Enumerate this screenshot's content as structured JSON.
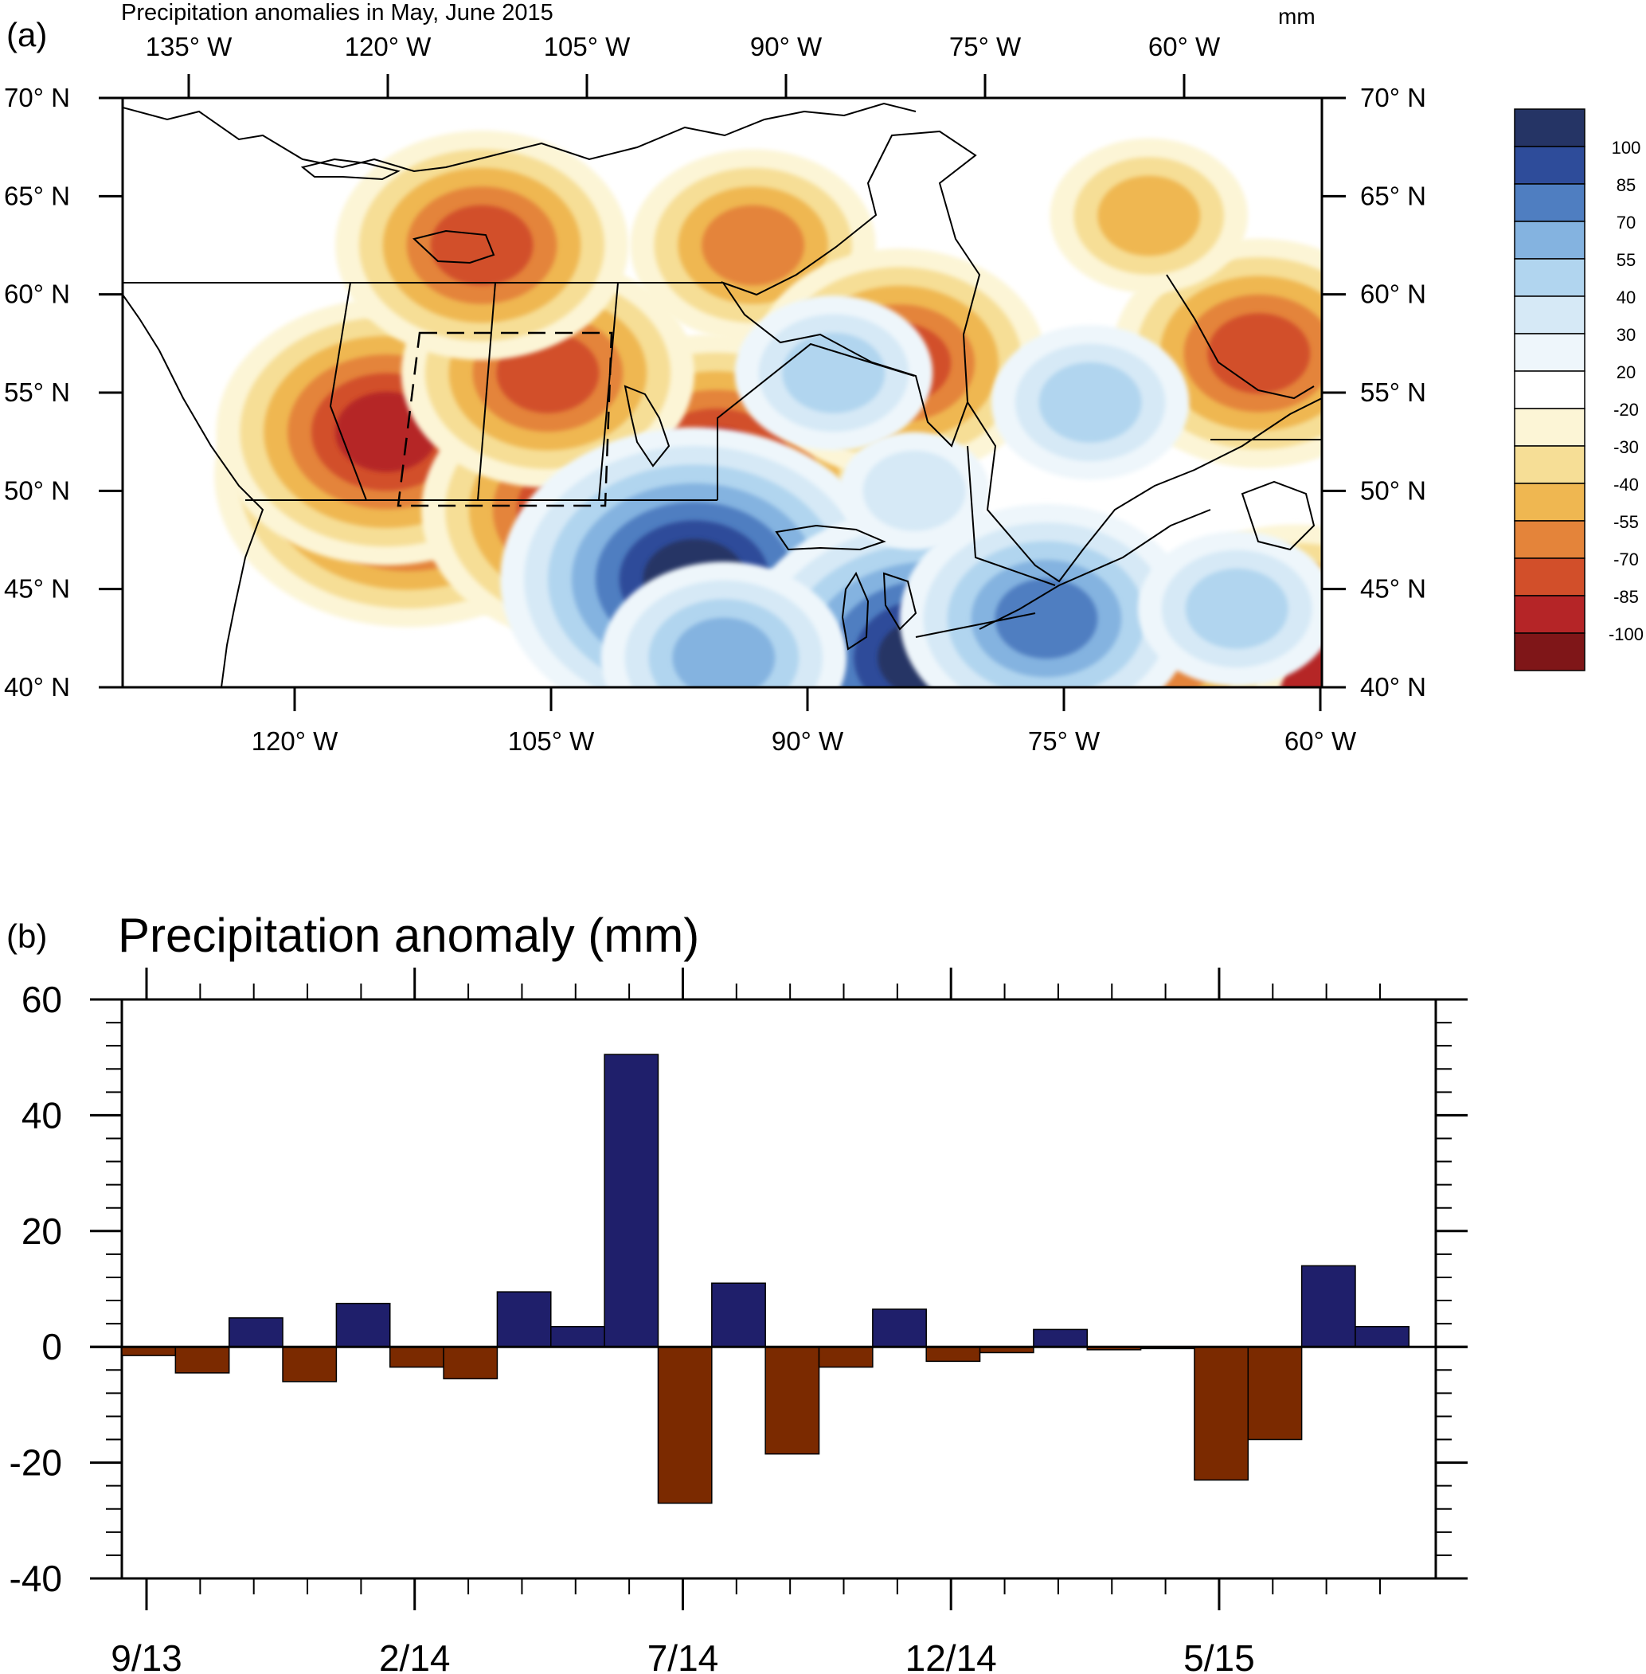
{
  "chart_data": [
    {
      "type": "heatmap",
      "panel_label": "(a)",
      "title": "Precipitation anomalies in May, June 2015",
      "units": "mm",
      "lat_ticks": [
        {
          "value": 40,
          "label": "40° N"
        },
        {
          "value": 45,
          "label": "45° N"
        },
        {
          "value": 50,
          "label": "50° N"
        },
        {
          "value": 55,
          "label": "55° N"
        },
        {
          "value": 60,
          "label": "60° N"
        },
        {
          "value": 65,
          "label": "65° N"
        },
        {
          "value": 70,
          "label": "70° N"
        }
      ],
      "top_lon_ticks": [
        {
          "value": -135,
          "label": "135°  W"
        },
        {
          "value": -120,
          "label": "120°  W"
        },
        {
          "value": -105,
          "label": "105°  W"
        },
        {
          "value": -90,
          "label": "90°  W"
        },
        {
          "value": -75,
          "label": "75°  W"
        },
        {
          "value": -60,
          "label": "60°  W"
        }
      ],
      "bottom_lon_ticks": [
        {
          "value": -120,
          "label": "120°  W"
        },
        {
          "value": -105,
          "label": "105°  W"
        },
        {
          "value": -90,
          "label": "90°  W"
        },
        {
          "value": -75,
          "label": "75°  W"
        },
        {
          "value": -60,
          "label": "60°  W"
        }
      ],
      "colorbar": {
        "colors": [
          "#253465",
          "#2e4c9a",
          "#4f7ec1",
          "#84b3e0",
          "#b1d5ef",
          "#d6e9f6",
          "#eef6fb",
          "#ffffff",
          "#fcf5d6",
          "#f6de96",
          "#efb751",
          "#e4843a",
          "#d24f2a",
          "#b52527",
          "#7f1618"
        ],
        "labels": [
          "100",
          "85",
          "70",
          "55",
          "40",
          "30",
          "20",
          "-20",
          "-30",
          "-40",
          "-55",
          "-70",
          "-85",
          "-100"
        ]
      },
      "anomaly_blobs": [
        {
          "lon": -121.5,
          "lat": 50.8,
          "level": -100
        },
        {
          "lon": -123,
          "lat": 53,
          "level": -85
        },
        {
          "lon": -109,
          "lat": 49,
          "level": -85
        },
        {
          "lon": -100.5,
          "lat": 51.2,
          "level": -85
        },
        {
          "lon": -112,
          "lat": 56,
          "level": -70
        },
        {
          "lon": -116.5,
          "lat": 62.5,
          "level": -70
        },
        {
          "lon": -98,
          "lat": 62.5,
          "level": -55
        },
        {
          "lon": -88,
          "lat": 56.5,
          "level": -70
        },
        {
          "lon": -63.5,
          "lat": 57,
          "level": -70
        },
        {
          "lon": -71,
          "lat": 64,
          "level": -40
        },
        {
          "lon": -61,
          "lat": 41.5,
          "level": -85
        },
        {
          "lon": -70,
          "lat": 41.5,
          "level": -55
        },
        {
          "lon": -102,
          "lat": 45.5,
          "level": 100
        },
        {
          "lon": -86,
          "lat": 41.5,
          "level": 100
        },
        {
          "lon": -100,
          "lat": 41.5,
          "level": 55
        },
        {
          "lon": -78,
          "lat": 43.5,
          "level": 70
        },
        {
          "lon": -75,
          "lat": 54.5,
          "level": 40
        },
        {
          "lon": -65,
          "lat": 44,
          "level": 40
        },
        {
          "lon": -87,
          "lat": 50,
          "level": 30
        },
        {
          "lon": -92.5,
          "lat": 56,
          "level": 40
        }
      ]
    },
    {
      "type": "bar",
      "panel_label": "(b)",
      "title": "Precipitation anomaly (mm)",
      "x_tick_labels": [
        "9/13",
        "2/14",
        "7/14",
        "12/14",
        "5/15"
      ],
      "x_tick_months": [
        0,
        5,
        10,
        15,
        20
      ],
      "y_ticks": [
        -40,
        -20,
        0,
        20,
        40,
        60
      ],
      "ylim": [
        -40,
        60
      ],
      "values": [
        -1.5,
        -4.5,
        5,
        -6,
        7.5,
        -3.5,
        -5.5,
        9.5,
        3.5,
        50.5,
        -27,
        11,
        -18.5,
        -3.5,
        6.5,
        -2.5,
        -1,
        3,
        -0.5,
        -0.3,
        -23,
        -16,
        14,
        3.5
      ],
      "colors": {
        "positive": "#1f1f6b",
        "negative": "#7b2a00"
      }
    }
  ]
}
